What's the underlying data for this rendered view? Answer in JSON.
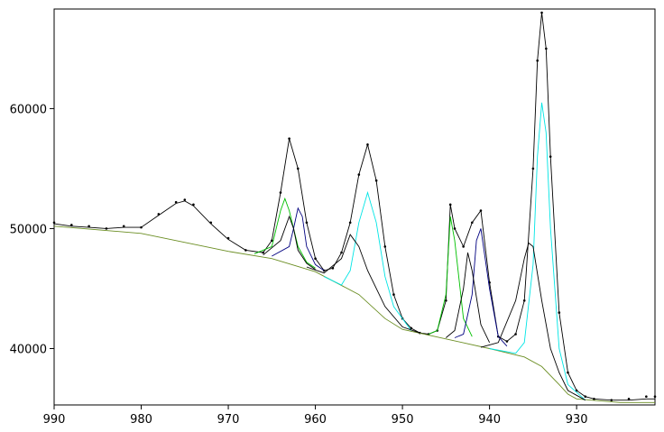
{
  "chart_data": {
    "type": "line",
    "xlim": [
      990,
      921
    ],
    "ylim": [
      35300,
      68300
    ],
    "xticks": [
      990,
      980,
      970,
      960,
      950,
      940,
      930
    ],
    "yticks": [
      40000,
      50000,
      60000
    ],
    "series": [
      {
        "style": "dots",
        "color": "#000000",
        "x": [
          990,
          988,
          986,
          984,
          982,
          980,
          978,
          976,
          975,
          974,
          972,
          970,
          968,
          966,
          965,
          964,
          963,
          962,
          961,
          960,
          959,
          958,
          957,
          956,
          955,
          954,
          953,
          952,
          951,
          950,
          949,
          948,
          947,
          946,
          945,
          944.5,
          944,
          943,
          942,
          941,
          940,
          939,
          938,
          937,
          936,
          935,
          934.5,
          934,
          933.5,
          933,
          932,
          931,
          930,
          929,
          928,
          926,
          924,
          922,
          921
        ],
        "values": [
          50500,
          50300,
          50200,
          50000,
          50200,
          50100,
          51200,
          52200,
          52400,
          52000,
          50500,
          49200,
          48200,
          48000,
          49000,
          53000,
          57500,
          55000,
          50500,
          47500,
          46500,
          46700,
          48000,
          50500,
          54500,
          57000,
          54000,
          48500,
          44500,
          42500,
          41700,
          41300,
          41200,
          41500,
          44000,
          52000,
          50000,
          48500,
          50500,
          51500,
          45500,
          41000,
          40600,
          41200,
          44000,
          55000,
          64000,
          68000,
          65000,
          56000,
          43000,
          38000,
          36500,
          36000,
          35800,
          35700,
          35800,
          36000,
          36000
        ]
      },
      {
        "style": "line",
        "color": "#000000",
        "x": [
          990,
          988,
          986,
          984,
          982,
          980,
          978,
          976,
          975,
          974,
          972,
          970,
          968,
          966,
          965,
          964,
          963,
          962,
          961,
          960,
          959,
          958,
          957,
          956,
          955,
          954,
          953,
          952,
          951,
          950,
          949,
          948,
          947,
          946,
          945,
          944.5,
          944,
          943,
          942,
          941,
          940,
          939,
          938,
          937,
          936,
          935,
          934.5,
          934,
          933.5,
          933,
          932,
          931,
          930,
          929,
          928,
          926,
          924,
          922,
          921
        ],
        "values": [
          50400,
          50200,
          50100,
          50000,
          50100,
          50100,
          51100,
          52100,
          52300,
          51900,
          50400,
          49100,
          48200,
          48000,
          49000,
          53000,
          57500,
          55000,
          50500,
          47500,
          46500,
          46700,
          48000,
          50500,
          54500,
          57000,
          54000,
          48500,
          44500,
          42500,
          41700,
          41300,
          41200,
          41500,
          44000,
          52000,
          50000,
          48500,
          50500,
          51500,
          45500,
          41000,
          40600,
          41200,
          44000,
          55000,
          64000,
          68000,
          65000,
          56000,
          43000,
          38000,
          36500,
          36000,
          35800,
          35700,
          35700,
          35800,
          35800
        ]
      },
      {
        "style": "line",
        "color": "#6b8e23",
        "x": [
          990,
          980,
          970,
          965,
          960,
          955,
          952,
          950,
          945,
          940,
          936,
          934,
          932,
          931,
          930,
          925,
          921
        ],
        "values": [
          50200,
          49600,
          48100,
          47500,
          46400,
          44500,
          42500,
          41600,
          40800,
          40000,
          39300,
          38500,
          37000,
          36200,
          35800,
          35500,
          35500
        ]
      },
      {
        "style": "line",
        "color": "#00e5e5",
        "x": [
          940,
          937,
          936,
          935,
          934.5,
          934,
          933.5,
          933,
          932,
          931,
          929
        ],
        "values": [
          40000,
          39600,
          40500,
          47000,
          56000,
          60500,
          58000,
          50000,
          40000,
          37000,
          35700
        ]
      },
      {
        "style": "line",
        "color": "#000000",
        "x": [
          941,
          939,
          937,
          936,
          935.5,
          935,
          934,
          933,
          932,
          931,
          929
        ],
        "values": [
          40100,
          40500,
          44000,
          47500,
          48800,
          48500,
          44000,
          40000,
          38000,
          36500,
          35700
        ]
      },
      {
        "style": "line",
        "color": "#00e5e5",
        "x": [
          959,
          957,
          956,
          955,
          954,
          953,
          952,
          951,
          949
        ],
        "values": [
          46000,
          45300,
          46500,
          50500,
          53000,
          50500,
          46000,
          43500,
          41500
        ]
      },
      {
        "style": "line",
        "color": "#000000",
        "x": [
          961,
          959,
          957,
          956,
          955.5,
          955,
          954,
          952,
          950,
          948
        ],
        "values": [
          46800,
          46300,
          47500,
          49500,
          49000,
          48500,
          46500,
          43500,
          41800,
          41300
        ]
      },
      {
        "style": "line",
        "color": "#00c000",
        "x": [
          967,
          965,
          964,
          963.5,
          963,
          962,
          961,
          960
        ],
        "values": [
          47900,
          48500,
          51500,
          52500,
          51500,
          48500,
          47200,
          46700
        ]
      },
      {
        "style": "line",
        "color": "#000080",
        "x": [
          965,
          963,
          962.5,
          962,
          961.5,
          961,
          960,
          959
        ],
        "values": [
          47700,
          48500,
          50000,
          51700,
          51000,
          48500,
          47000,
          46500
        ]
      },
      {
        "style": "line",
        "color": "#000000",
        "x": [
          966,
          964,
          963.5,
          963,
          962.5,
          962,
          961,
          960
        ],
        "values": [
          47800,
          49000,
          50000,
          51000,
          50000,
          48200,
          47100,
          46600
        ]
      },
      {
        "style": "line",
        "color": "#00c000",
        "x": [
          947,
          946,
          945,
          944.5,
          944,
          943,
          942
        ],
        "values": [
          41200,
          41500,
          44500,
          51000,
          49000,
          42500,
          41000
        ]
      },
      {
        "style": "line",
        "color": "#000080",
        "x": [
          944,
          943,
          942,
          941.5,
          941,
          940,
          939,
          938
        ],
        "values": [
          40900,
          41200,
          44500,
          49000,
          50000,
          45000,
          41000,
          40200
        ]
      },
      {
        "style": "line",
        "color": "#000000",
        "x": [
          945,
          944,
          943,
          942.5,
          942,
          941,
          940
        ],
        "values": [
          40900,
          41500,
          45000,
          48000,
          46500,
          42000,
          40500
        ]
      }
    ]
  }
}
